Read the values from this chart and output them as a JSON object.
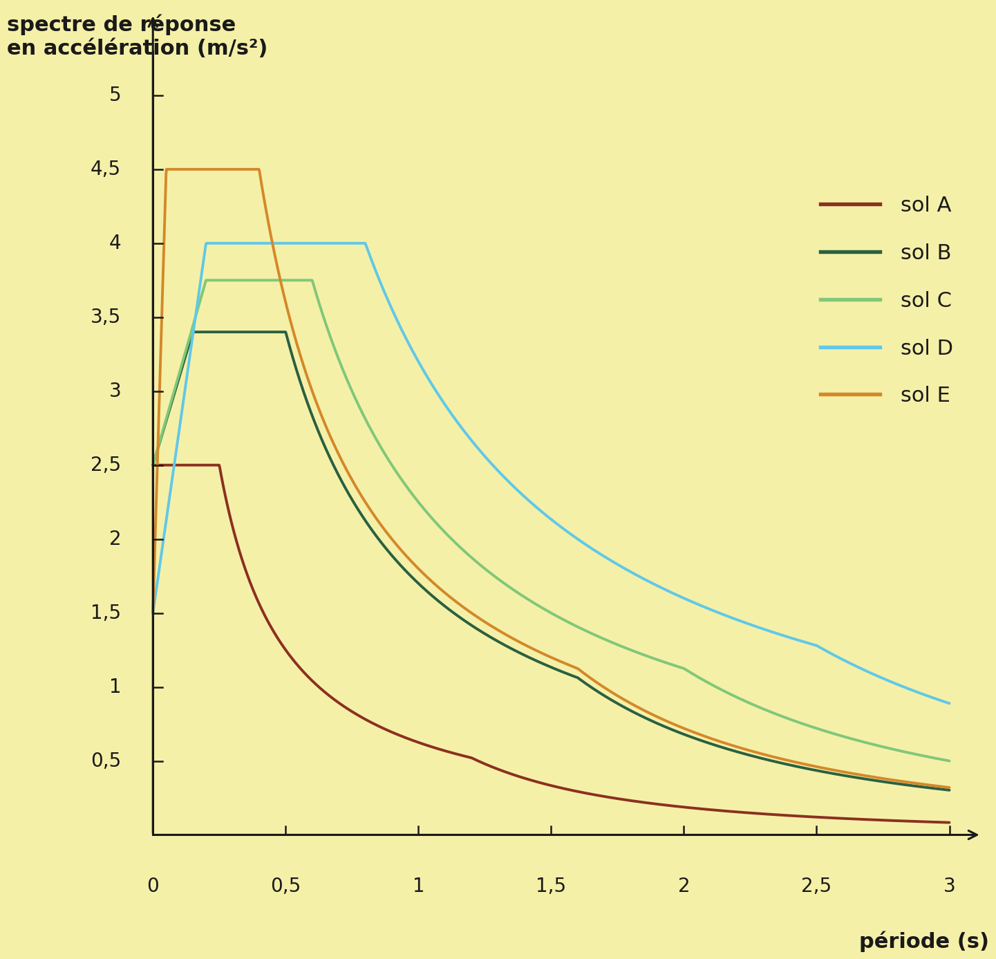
{
  "background_color": "#F5F0A8",
  "ylabel": "spectre de réponse\nen accélération (m/s²)",
  "xlabel": "période (s)",
  "xlim": [
    -0.05,
    3.15
  ],
  "ylim": [
    -0.15,
    5.6
  ],
  "yticks": [
    0.5,
    1.0,
    1.5,
    2.0,
    2.5,
    3.0,
    3.5,
    4.0,
    4.5,
    5.0
  ],
  "ytick_labels": [
    "0,5",
    "1",
    "1,5",
    "2",
    "2,5",
    "3",
    "3,5",
    "4",
    "4,5",
    "5"
  ],
  "xticks": [
    0.5,
    1.0,
    1.5,
    2.0,
    2.5,
    3.0
  ],
  "xtick_labels": [
    "0,5",
    "1",
    "1,5",
    "2",
    "2,5",
    "3"
  ],
  "series": [
    {
      "label": "sol A",
      "color": "#8B3020",
      "T0": 0.0,
      "S0": 2.5,
      "TB": 0.1,
      "TC": 0.25,
      "TD": 1.2,
      "plateau": 2.5
    },
    {
      "label": "sol B",
      "color": "#2A6040",
      "T0": 0.0,
      "S0": 2.5,
      "TB": 0.15,
      "TC": 0.5,
      "TD": 1.6,
      "plateau": 3.4
    },
    {
      "label": "sol C",
      "color": "#80C878",
      "T0": 0.0,
      "S0": 2.5,
      "TB": 0.2,
      "TC": 0.6,
      "TD": 2.0,
      "plateau": 3.75
    },
    {
      "label": "sol D",
      "color": "#60C8E8",
      "T0": 0.0,
      "S0": 1.5,
      "TB": 0.2,
      "TC": 0.8,
      "TD": 2.5,
      "plateau": 4.0
    },
    {
      "label": "sol E",
      "color": "#D4882A",
      "T0": 0.0,
      "S0": 1.5,
      "TB": 0.05,
      "TC": 0.4,
      "TD": 1.6,
      "plateau": 4.5
    }
  ],
  "line_width": 2.8,
  "tick_fontsize": 20,
  "label_fontsize": 22,
  "legend_fontsize": 22
}
